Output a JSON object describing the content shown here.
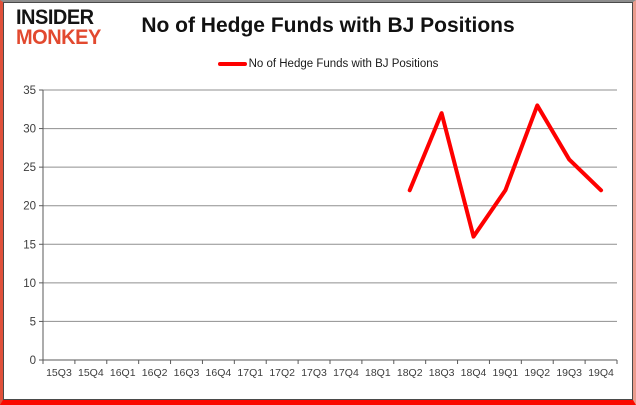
{
  "logo": {
    "line1": "INSIDER",
    "line2": "MONKEY"
  },
  "header": {
    "title": "No of Hedge Funds with BJ Positions"
  },
  "legend": {
    "label": "No of Hedge Funds with BJ Positions",
    "swatch_color": "#fe0000"
  },
  "colors": {
    "series_red": "#fe0000",
    "gridline": "#8f8f8f",
    "axis": "#5a5a5a",
    "label_text": "#3d3d3d",
    "logo_black": "#141414",
    "logo_red": "#e2492f"
  },
  "chart_data": {
    "type": "line",
    "title": "No of Hedge Funds with BJ Positions",
    "xlabel": "",
    "ylabel": "",
    "categories": [
      "15Q3",
      "15Q4",
      "16Q1",
      "16Q2",
      "16Q3",
      "16Q4",
      "17Q1",
      "17Q2",
      "17Q3",
      "17Q4",
      "18Q1",
      "18Q2",
      "18Q3",
      "18Q4",
      "19Q1",
      "19Q2",
      "19Q3",
      "19Q4"
    ],
    "series": [
      {
        "name": "No of Hedge Funds with BJ Positions",
        "color": "#fe0000",
        "values": [
          null,
          null,
          null,
          null,
          null,
          null,
          null,
          null,
          null,
          null,
          null,
          22,
          32,
          16,
          22,
          33,
          26,
          22
        ]
      }
    ],
    "ylim": [
      0,
      35
    ],
    "ytick_step": 5,
    "grid": true,
    "legend_position": "top"
  }
}
